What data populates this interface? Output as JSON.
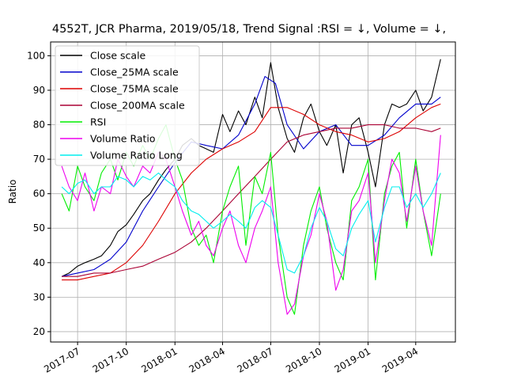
{
  "chart_data": {
    "type": "line",
    "title": "4552T, JCR Pharma, 2019/05/18, Trend Signal :RSI = ↓, Volume = ↓,",
    "xlabel": "",
    "ylabel": "Ratio",
    "ylim": [
      17,
      104
    ],
    "xlim": [
      "2017-05-11",
      "2019-06-15"
    ],
    "yticks": [
      20,
      30,
      40,
      50,
      60,
      70,
      80,
      90,
      100
    ],
    "xticks": [
      "2017-07",
      "2017-10",
      "2018-01",
      "2018-04",
      "2018-07",
      "2018-10",
      "2019-01",
      "2019-04"
    ],
    "grid": true,
    "legend_position": "top-left",
    "series": [
      {
        "name": "Close scale",
        "color": "#000000",
        "x": [
          "2017-06-01",
          "2017-06-15",
          "2017-07-01",
          "2017-07-15",
          "2017-08-01",
          "2017-08-15",
          "2017-09-01",
          "2017-09-15",
          "2017-10-01",
          "2017-10-15",
          "2017-11-01",
          "2017-11-15",
          "2017-12-01",
          "2017-12-15",
          "2018-01-01",
          "2018-01-15",
          "2018-02-01",
          "2018-02-15",
          "2018-03-01",
          "2018-03-15",
          "2018-04-01",
          "2018-04-15",
          "2018-05-01",
          "2018-05-15",
          "2018-06-01",
          "2018-06-15",
          "2018-07-01",
          "2018-07-15",
          "2018-08-01",
          "2018-08-15",
          "2018-09-01",
          "2018-09-15",
          "2018-10-01",
          "2018-10-15",
          "2018-11-01",
          "2018-11-15",
          "2018-12-01",
          "2018-12-15",
          "2019-01-01",
          "2019-01-15",
          "2019-02-01",
          "2019-02-15",
          "2019-03-01",
          "2019-03-15",
          "2019-04-01",
          "2019-04-15",
          "2019-05-01",
          "2019-05-18"
        ],
        "values": [
          36,
          37,
          39,
          40,
          41,
          42,
          45,
          49,
          51,
          54,
          58,
          60,
          64,
          67,
          70,
          74,
          76,
          74,
          73,
          72,
          83,
          78,
          84,
          80,
          88,
          82,
          98,
          85,
          76,
          72,
          82,
          86,
          78,
          74,
          80,
          66,
          80,
          82,
          72,
          62,
          80,
          86,
          85,
          86,
          90,
          84,
          88,
          99
        ]
      },
      {
        "name": "Close_25MA scale",
        "color": "#0000cc",
        "x": [
          "2017-06-01",
          "2017-07-01",
          "2017-08-01",
          "2017-09-01",
          "2017-10-01",
          "2017-11-01",
          "2017-12-01",
          "2018-01-01",
          "2018-02-01",
          "2018-03-01",
          "2018-04-01",
          "2018-05-01",
          "2018-06-01",
          "2018-06-20",
          "2018-07-10",
          "2018-08-01",
          "2018-09-01",
          "2018-10-01",
          "2018-11-01",
          "2018-12-01",
          "2019-01-01",
          "2019-02-01",
          "2019-03-01",
          "2019-04-01",
          "2019-05-01",
          "2019-05-18"
        ],
        "values": [
          36,
          37,
          38,
          41,
          46,
          55,
          62,
          69,
          75,
          74,
          73,
          77,
          86,
          94,
          92,
          80,
          73,
          78,
          80,
          74,
          74,
          77,
          82,
          86,
          86,
          88
        ]
      },
      {
        "name": "Close_75MA scale",
        "color": "#dd0000",
        "x": [
          "2017-06-01",
          "2017-07-01",
          "2017-08-01",
          "2017-09-01",
          "2017-10-01",
          "2017-11-01",
          "2017-12-01",
          "2018-01-01",
          "2018-02-01",
          "2018-03-01",
          "2018-04-01",
          "2018-05-01",
          "2018-06-01",
          "2018-07-01",
          "2018-08-01",
          "2018-09-01",
          "2018-10-01",
          "2018-11-01",
          "2018-12-01",
          "2019-01-01",
          "2019-02-01",
          "2019-03-01",
          "2019-04-01",
          "2019-05-01",
          "2019-05-18"
        ],
        "values": [
          35,
          35,
          36,
          37,
          40,
          45,
          52,
          60,
          66,
          70,
          73,
          75,
          78,
          85,
          85,
          83,
          80,
          78,
          77,
          75,
          76,
          78,
          82,
          85,
          86
        ]
      },
      {
        "name": "Close_200MA scale",
        "color": "#aa0033",
        "x": [
          "2017-06-01",
          "2017-07-01",
          "2017-08-01",
          "2017-09-01",
          "2017-10-01",
          "2017-11-01",
          "2017-12-01",
          "2018-01-01",
          "2018-02-01",
          "2018-03-01",
          "2018-04-01",
          "2018-05-01",
          "2018-06-01",
          "2018-07-01",
          "2018-08-01",
          "2018-09-01",
          "2018-10-01",
          "2018-11-01",
          "2018-12-01",
          "2019-01-01",
          "2019-02-01",
          "2019-03-01",
          "2019-04-01",
          "2019-05-01",
          "2019-05-18"
        ],
        "values": [
          36,
          36,
          37,
          37,
          38,
          39,
          41,
          43,
          46,
          50,
          55,
          60,
          65,
          70,
          75,
          77,
          78,
          79,
          79,
          80,
          80,
          79,
          79,
          78,
          79
        ]
      },
      {
        "name": "RSI",
        "color": "#00ee00",
        "x": [
          "2017-06-01",
          "2017-06-15",
          "2017-07-01",
          "2017-07-15",
          "2017-08-01",
          "2017-08-15",
          "2017-09-01",
          "2017-09-15",
          "2017-10-01",
          "2017-10-15",
          "2017-11-01",
          "2017-11-15",
          "2017-12-01",
          "2017-12-15",
          "2018-01-01",
          "2018-01-15",
          "2018-02-01",
          "2018-02-15",
          "2018-03-01",
          "2018-03-15",
          "2018-04-01",
          "2018-04-15",
          "2018-05-01",
          "2018-05-15",
          "2018-06-01",
          "2018-06-15",
          "2018-07-01",
          "2018-07-15",
          "2018-08-01",
          "2018-08-15",
          "2018-09-01",
          "2018-09-15",
          "2018-10-01",
          "2018-10-15",
          "2018-11-01",
          "2018-11-15",
          "2018-12-01",
          "2018-12-15",
          "2019-01-01",
          "2019-01-15",
          "2019-02-01",
          "2019-02-15",
          "2019-03-01",
          "2019-03-15",
          "2019-04-01",
          "2019-04-15",
          "2019-05-01",
          "2019-05-18"
        ],
        "values": [
          60,
          55,
          68,
          62,
          58,
          66,
          70,
          64,
          72,
          68,
          74,
          70,
          76,
          80,
          70,
          64,
          50,
          45,
          48,
          40,
          55,
          62,
          68,
          45,
          65,
          60,
          72,
          48,
          30,
          25,
          45,
          55,
          62,
          50,
          40,
          35,
          58,
          62,
          70,
          35,
          60,
          68,
          72,
          50,
          70,
          55,
          42,
          60
        ]
      },
      {
        "name": "Volume Ratio",
        "color": "#ee00ee",
        "x": [
          "2017-06-01",
          "2017-06-15",
          "2017-07-01",
          "2017-07-15",
          "2017-08-01",
          "2017-08-15",
          "2017-09-01",
          "2017-09-15",
          "2017-10-01",
          "2017-10-15",
          "2017-11-01",
          "2017-11-15",
          "2017-12-01",
          "2017-12-15",
          "2018-01-01",
          "2018-01-15",
          "2018-02-01",
          "2018-02-15",
          "2018-03-01",
          "2018-03-15",
          "2018-04-01",
          "2018-04-15",
          "2018-05-01",
          "2018-05-15",
          "2018-06-01",
          "2018-06-15",
          "2018-07-01",
          "2018-07-15",
          "2018-08-01",
          "2018-08-15",
          "2018-09-01",
          "2018-09-15",
          "2018-10-01",
          "2018-10-15",
          "2018-11-01",
          "2018-11-15",
          "2018-12-01",
          "2018-12-15",
          "2019-01-01",
          "2019-01-15",
          "2019-02-01",
          "2019-02-15",
          "2019-03-01",
          "2019-03-15",
          "2019-04-01",
          "2019-04-15",
          "2019-05-01",
          "2019-05-18"
        ],
        "values": [
          68,
          62,
          58,
          66,
          55,
          62,
          60,
          70,
          65,
          62,
          68,
          66,
          72,
          70,
          62,
          55,
          48,
          52,
          45,
          42,
          50,
          55,
          45,
          40,
          50,
          55,
          62,
          40,
          25,
          28,
          42,
          48,
          60,
          52,
          32,
          38,
          55,
          58,
          66,
          40,
          58,
          70,
          66,
          52,
          68,
          55,
          45,
          77
        ]
      },
      {
        "name": "Volume Ratio Long",
        "color": "#00eeee",
        "x": [
          "2017-06-01",
          "2017-06-15",
          "2017-07-01",
          "2017-07-15",
          "2017-08-01",
          "2017-08-15",
          "2017-09-01",
          "2017-09-15",
          "2017-10-01",
          "2017-10-15",
          "2017-11-01",
          "2017-11-15",
          "2017-12-01",
          "2017-12-15",
          "2018-01-01",
          "2018-01-15",
          "2018-02-01",
          "2018-02-15",
          "2018-03-01",
          "2018-03-15",
          "2018-04-01",
          "2018-04-15",
          "2018-05-01",
          "2018-05-15",
          "2018-06-01",
          "2018-06-15",
          "2018-07-01",
          "2018-07-15",
          "2018-08-01",
          "2018-08-15",
          "2018-09-01",
          "2018-09-15",
          "2018-10-01",
          "2018-10-15",
          "2018-11-01",
          "2018-11-15",
          "2018-12-01",
          "2018-12-15",
          "2019-01-01",
          "2019-01-15",
          "2019-02-01",
          "2019-02-15",
          "2019-03-01",
          "2019-03-15",
          "2019-04-01",
          "2019-04-15",
          "2019-05-01",
          "2019-05-18"
        ],
        "values": [
          62,
          60,
          63,
          64,
          60,
          62,
          62,
          65,
          64,
          62,
          65,
          64,
          66,
          64,
          62,
          58,
          55,
          54,
          52,
          50,
          52,
          54,
          52,
          50,
          56,
          58,
          56,
          48,
          38,
          37,
          42,
          50,
          56,
          52,
          44,
          42,
          50,
          54,
          58,
          46,
          56,
          62,
          62,
          56,
          60,
          56,
          60,
          66
        ]
      }
    ]
  }
}
